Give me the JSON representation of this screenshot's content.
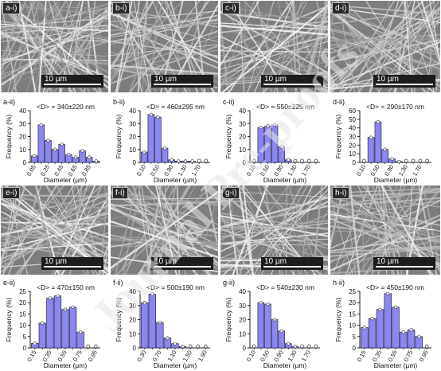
{
  "colors": {
    "bar_fill": "#8b86f0",
    "bar_stroke": "#2a2a4a",
    "axis": "#222222",
    "sem_bg": "#7d7d7d",
    "watermark": "#e6e6e6"
  },
  "watermark_text": "Journal Pre-proofs",
  "scale_bar_text": "10 µm",
  "chart_data": [
    {
      "type": "bar",
      "panel": "a-ii)",
      "image_label": "a-i)",
      "annotation": "<D> = 340±220 nm",
      "ylabel": "Frequency (%)",
      "xlabel": "Diameter (µm)",
      "ylim": [
        0,
        40
      ],
      "yticks": [
        0,
        10,
        20,
        30,
        40
      ],
      "x": [
        0.05,
        0.15,
        0.25,
        0.35,
        0.45,
        0.55,
        0.65,
        0.75,
        0.85,
        0.95
      ],
      "values": [
        5,
        29,
        17,
        10,
        14,
        6,
        4,
        9,
        4,
        1
      ],
      "xticks": [
        "0.05",
        "0.25",
        "0.45",
        "0.65",
        "0.85"
      ]
    },
    {
      "type": "bar",
      "panel": "b-ii)",
      "image_label": "b-i)",
      "annotation": "<D> = 460±295 nm",
      "ylabel": "Frequency (%)",
      "xlabel": "Diameter (µm)",
      "ylim": [
        0,
        40
      ],
      "yticks": [
        0,
        10,
        20,
        30,
        40
      ],
      "x": [
        0.1,
        0.3,
        0.5,
        0.7,
        0.9,
        1.1,
        1.3,
        1.5,
        1.7,
        1.9
      ],
      "values": [
        8,
        37,
        35,
        11,
        2,
        1,
        1,
        1,
        0,
        0
      ],
      "xticks": [
        "0.10",
        "0.50",
        "0.90",
        "1.30",
        "1.70"
      ]
    },
    {
      "type": "bar",
      "panel": "c-ii)",
      "image_label": "c-i)",
      "annotation": "<D> = 550±225 nm",
      "ylabel": "Frequency (%)",
      "xlabel": "Diameter (µm)",
      "ylim": [
        0,
        40
      ],
      "yticks": [
        0,
        10,
        20,
        30,
        40
      ],
      "x": [
        0.1,
        0.3,
        0.5,
        0.7,
        0.9,
        1.1,
        1.3,
        1.5,
        1.7,
        1.9
      ],
      "values": [
        0,
        27,
        28,
        29,
        12,
        2,
        0,
        0,
        0,
        0
      ],
      "xticks": [
        "0.10",
        "0.50",
        "0.90",
        "1.30",
        "1.70"
      ]
    },
    {
      "type": "bar",
      "panel": "d-ii)",
      "image_label": "d-i)",
      "annotation": "<D> = 290±170 nm",
      "ylabel": "Frequency (%)",
      "xlabel": "Diameter (µm)",
      "ylim": [
        0,
        60
      ],
      "yticks": [
        0,
        10,
        20,
        30,
        40,
        50,
        60
      ],
      "x": [
        0.1,
        0.3,
        0.5,
        0.7,
        0.9,
        1.1,
        1.3,
        1.5,
        1.7,
        1.9
      ],
      "values": [
        0,
        29,
        47,
        15,
        4,
        1,
        0,
        0,
        0,
        0
      ],
      "xticks": [
        "0.10",
        "0.50",
        "0.90",
        "1.30",
        "1.70"
      ]
    },
    {
      "type": "bar",
      "panel": "e-ii)",
      "image_label": "e-i)",
      "annotation": "<D> = 470±150 nm",
      "ylabel": "Frequency (%)",
      "xlabel": "Diameter (µm)",
      "ylim": [
        0,
        25
      ],
      "yticks": [
        0,
        5,
        10,
        15,
        20,
        25
      ],
      "x": [
        0.15,
        0.25,
        0.35,
        0.45,
        0.55,
        0.65,
        0.75,
        0.85,
        0.95
      ],
      "values": [
        2,
        11,
        22,
        23,
        17,
        18,
        7,
        0,
        0
      ],
      "xticks": [
        "0.15",
        "0.35",
        "0.55",
        "0.75",
        "0.95"
      ]
    },
    {
      "type": "bar",
      "panel": "f-ii)",
      "image_label": "f-i)",
      "annotation": "<D> = 500±190 nm",
      "ylabel": "Frequency (%)",
      "xlabel": "Diameter (µm)",
      "ylim": [
        0,
        40
      ],
      "yticks": [
        0,
        10,
        20,
        30,
        40
      ],
      "x": [
        0.3,
        0.5,
        0.7,
        0.9,
        1.1,
        1.3,
        1.5,
        1.7,
        1.9
      ],
      "values": [
        32,
        38,
        18,
        7,
        3,
        1,
        0,
        0,
        0
      ],
      "xticks": [
        "0.30",
        "0.70",
        "1.10",
        "1.50",
        "1.90"
      ]
    },
    {
      "type": "bar",
      "panel": "g-ii)",
      "image_label": "g-i)",
      "annotation": "<D> = 540±230 nm",
      "ylabel": "Frequency (%)",
      "xlabel": "Diameter (µm)",
      "ylim": [
        0,
        40
      ],
      "yticks": [
        0,
        10,
        20,
        30,
        40
      ],
      "x": [
        0.1,
        0.3,
        0.5,
        0.7,
        0.9,
        1.1,
        1.3,
        1.5,
        1.7,
        1.9
      ],
      "values": [
        0,
        32,
        31,
        20,
        12,
        3,
        1,
        0,
        0,
        0
      ],
      "xticks": [
        "0.10",
        "0.50",
        "0.90",
        "1.30",
        "1.70"
      ]
    },
    {
      "type": "bar",
      "panel": "h-ii)",
      "image_label": "h-i)",
      "annotation": "<D> = 450±190 nm",
      "ylabel": "Frequency (%)",
      "xlabel": "Diameter (µm)",
      "ylim": [
        0,
        25
      ],
      "yticks": [
        0,
        5,
        10,
        15,
        20,
        25
      ],
      "x": [
        0.15,
        0.25,
        0.35,
        0.45,
        0.55,
        0.65,
        0.75,
        0.85,
        0.95
      ],
      "values": [
        9,
        13,
        17,
        24,
        18,
        7,
        8,
        5,
        0
      ],
      "xticks": [
        "0.15",
        "0.35",
        "0.55",
        "0.75",
        "0.95"
      ]
    }
  ]
}
